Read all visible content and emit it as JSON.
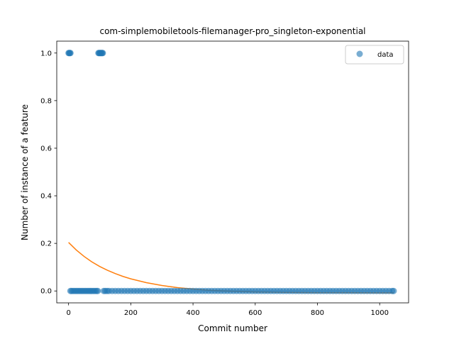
{
  "chart_data": {
    "type": "scatter",
    "title": "com-simplemobiletools-filemanager-pro_singleton-exponential",
    "xlabel": "Commit number",
    "ylabel": "Number of instance of a feature",
    "xlim": [
      -38,
      1093
    ],
    "ylim": [
      -0.05,
      1.05
    ],
    "xticks": [
      0,
      200,
      400,
      600,
      800,
      1000
    ],
    "yticks": [
      0.0,
      0.2,
      0.4,
      0.6,
      0.8,
      1.0
    ],
    "xtick_labels": [
      "0",
      "200",
      "400",
      "600",
      "800",
      "1000"
    ],
    "ytick_labels": [
      "0.0",
      "0.2",
      "0.4",
      "0.6",
      "0.8",
      "1.0"
    ],
    "grid": false,
    "legend": {
      "placement": "top-right",
      "entries": [
        "data"
      ]
    },
    "colors": {
      "data": "#1f77b4",
      "fit": "#ff7f0e"
    },
    "series": [
      {
        "name": "data",
        "kind": "scatter",
        "points": [
          [
            0,
            1
          ],
          [
            2,
            1
          ],
          [
            4,
            1
          ],
          [
            6,
            1
          ],
          [
            96,
            1
          ],
          [
            98,
            1
          ],
          [
            100,
            1
          ],
          [
            102,
            1
          ],
          [
            104,
            1
          ],
          [
            106,
            1
          ],
          [
            108,
            1
          ],
          [
            110,
            1
          ],
          [
            6,
            0
          ],
          [
            10,
            0
          ],
          [
            15,
            0
          ],
          [
            20,
            0
          ],
          [
            25,
            0
          ],
          [
            30,
            0
          ],
          [
            35,
            0
          ],
          [
            40,
            0
          ],
          [
            45,
            0
          ],
          [
            50,
            0
          ],
          [
            55,
            0
          ],
          [
            60,
            0
          ],
          [
            65,
            0
          ],
          [
            70,
            0
          ],
          [
            75,
            0
          ],
          [
            80,
            0
          ],
          [
            85,
            0
          ],
          [
            90,
            0
          ],
          [
            94,
            0
          ],
          [
            113,
            0
          ],
          [
            118,
            0
          ],
          [
            124,
            0
          ],
          [
            130,
            0
          ],
          [
            140,
            0
          ],
          [
            150,
            0
          ],
          [
            160,
            0
          ],
          [
            170,
            0
          ],
          [
            180,
            0
          ],
          [
            190,
            0
          ],
          [
            200,
            0
          ],
          [
            210,
            0
          ],
          [
            220,
            0
          ],
          [
            230,
            0
          ],
          [
            240,
            0
          ],
          [
            250,
            0
          ],
          [
            260,
            0
          ],
          [
            270,
            0
          ],
          [
            280,
            0
          ],
          [
            290,
            0
          ],
          [
            300,
            0
          ],
          [
            310,
            0
          ],
          [
            320,
            0
          ],
          [
            330,
            0
          ],
          [
            340,
            0
          ],
          [
            350,
            0
          ],
          [
            360,
            0
          ],
          [
            370,
            0
          ],
          [
            380,
            0
          ],
          [
            390,
            0
          ],
          [
            400,
            0
          ],
          [
            410,
            0
          ],
          [
            420,
            0
          ],
          [
            430,
            0
          ],
          [
            440,
            0
          ],
          [
            450,
            0
          ],
          [
            460,
            0
          ],
          [
            470,
            0
          ],
          [
            480,
            0
          ],
          [
            490,
            0
          ],
          [
            500,
            0
          ],
          [
            510,
            0
          ],
          [
            520,
            0
          ],
          [
            530,
            0
          ],
          [
            540,
            0
          ],
          [
            550,
            0
          ],
          [
            560,
            0
          ],
          [
            570,
            0
          ],
          [
            580,
            0
          ],
          [
            590,
            0
          ],
          [
            600,
            0
          ],
          [
            610,
            0
          ],
          [
            620,
            0
          ],
          [
            630,
            0
          ],
          [
            640,
            0
          ],
          [
            650,
            0
          ],
          [
            660,
            0
          ],
          [
            670,
            0
          ],
          [
            680,
            0
          ],
          [
            690,
            0
          ],
          [
            700,
            0
          ],
          [
            710,
            0
          ],
          [
            720,
            0
          ],
          [
            730,
            0
          ],
          [
            740,
            0
          ],
          [
            750,
            0
          ],
          [
            760,
            0
          ],
          [
            770,
            0
          ],
          [
            780,
            0
          ],
          [
            790,
            0
          ],
          [
            800,
            0
          ],
          [
            810,
            0
          ],
          [
            820,
            0
          ],
          [
            830,
            0
          ],
          [
            840,
            0
          ],
          [
            850,
            0
          ],
          [
            860,
            0
          ],
          [
            870,
            0
          ],
          [
            880,
            0
          ],
          [
            890,
            0
          ],
          [
            900,
            0
          ],
          [
            910,
            0
          ],
          [
            920,
            0
          ],
          [
            930,
            0
          ],
          [
            940,
            0
          ],
          [
            950,
            0
          ],
          [
            960,
            0
          ],
          [
            970,
            0
          ],
          [
            980,
            0
          ],
          [
            990,
            0
          ],
          [
            1000,
            0
          ],
          [
            1010,
            0
          ],
          [
            1020,
            0
          ],
          [
            1030,
            0
          ],
          [
            1040,
            0
          ],
          [
            1045,
            0
          ]
        ]
      },
      {
        "kind": "line",
        "points": [
          [
            0,
            0.204
          ],
          [
            25,
            0.172
          ],
          [
            50,
            0.145
          ],
          [
            75,
            0.122
          ],
          [
            100,
            0.103
          ],
          [
            125,
            0.087
          ],
          [
            150,
            0.073
          ],
          [
            175,
            0.061
          ],
          [
            200,
            0.051
          ],
          [
            250,
            0.035
          ],
          [
            300,
            0.023
          ],
          [
            350,
            0.014
          ],
          [
            400,
            0.008
          ],
          [
            450,
            0.003
          ],
          [
            500,
            0.0
          ],
          [
            550,
            -0.002
          ],
          [
            600,
            -0.004
          ],
          [
            650,
            -0.005
          ],
          [
            700,
            -0.006
          ],
          [
            800,
            -0.007
          ],
          [
            900,
            -0.007
          ],
          [
            1000,
            -0.008
          ],
          [
            1045,
            -0.008
          ]
        ]
      }
    ]
  }
}
